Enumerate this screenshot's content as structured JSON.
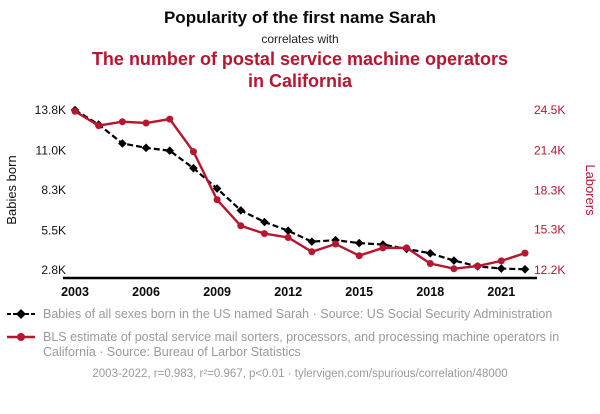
{
  "header": {
    "title_black": "Popularity of the first name Sarah",
    "connector": "correlates with",
    "title_red": "The number of postal service machine operators in California"
  },
  "colors": {
    "red": "#b8152f",
    "black": "#000000",
    "gray": "#9a9a9a"
  },
  "chart_data": {
    "type": "line",
    "title": "Popularity of the first name Sarah correlates with The number of postal service machine operators in California",
    "x": [
      2003,
      2004,
      2005,
      2006,
      2007,
      2008,
      2009,
      2010,
      2011,
      2012,
      2013,
      2014,
      2015,
      2016,
      2017,
      2018,
      2019,
      2020,
      2021,
      2022
    ],
    "x_ticks": [
      2003,
      2006,
      2009,
      2012,
      2015,
      2018,
      2021
    ],
    "left_axis": {
      "label": "Babies born",
      "min": 2800,
      "max": 13800,
      "tick_values": [
        13800,
        11000,
        8300,
        5500,
        2800
      ],
      "ticks": [
        "13.8K",
        "11.0K",
        "8.3K",
        "5.5K",
        "2.8K"
      ]
    },
    "right_axis": {
      "label": "Laborers",
      "min": 12200,
      "max": 24500,
      "tick_values": [
        24500,
        21400,
        18300,
        15300,
        12200
      ],
      "ticks": [
        "24.5K",
        "21.4K",
        "18.3K",
        "15.3K",
        "12.2K"
      ]
    },
    "series": [
      {
        "name": "Babies of all sexes born in the US named Sarah",
        "axis": "left",
        "color": "#000000",
        "style": "dashed",
        "marker": "diamond",
        "values": [
          13800,
          12800,
          11500,
          11200,
          11000,
          9800,
          8400,
          6900,
          6100,
          5500,
          4750,
          4850,
          4650,
          4550,
          4250,
          3950,
          3450,
          3050,
          2900,
          2850
        ]
      },
      {
        "name": "BLS estimate of postal service mail sorters, processors, and processing machine operators in California",
        "axis": "right",
        "color": "#b8152f",
        "style": "solid",
        "marker": "circle",
        "values": [
          24400,
          23300,
          23600,
          23500,
          23800,
          21300,
          17600,
          15600,
          15000,
          14700,
          13600,
          14200,
          13300,
          13900,
          13900,
          12700,
          12300,
          12500,
          12900,
          13500
        ]
      }
    ],
    "legend_position": "bottom",
    "grid": false
  },
  "legend": [
    {
      "marker": "diamond",
      "label": "Babies of all sexes born in the US named Sarah · Source: US Social Security Administration"
    },
    {
      "marker": "circle",
      "label": "BLS estimate of postal service mail sorters, processors, and processing machine operators in California · Source: Bureau of Larbor Statistics"
    }
  ],
  "footer": {
    "text": "2003-2022, r=0.983, r²=0.967, p<0.01 · tylervigen.com/spurious/correlation/48000"
  }
}
